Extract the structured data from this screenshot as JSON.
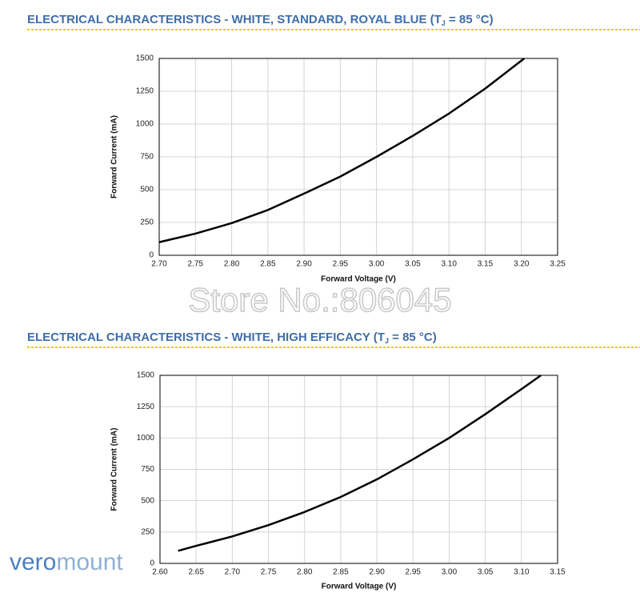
{
  "chart_data": [
    {
      "type": "line",
      "title": [
        "ELECTRICAL CHARACTERISTICS - WHITE, STANDARD, ROYAL BLUE (T",
        "J",
        " = 85 °C)"
      ],
      "x_label": "Forward Voltage (V)",
      "y_label": "Forward Current (mA)",
      "x": [
        2.7,
        2.75,
        2.8,
        2.85,
        2.9,
        2.95,
        3.0,
        3.05,
        3.1,
        3.15,
        3.204
      ],
      "series": [
        {
          "name": "Forward Current",
          "color": "#000000",
          "values": [
            100,
            165,
            245,
            345,
            470,
            600,
            750,
            910,
            1080,
            1270,
            1500
          ]
        }
      ],
      "xlim": [
        2.7,
        3.25
      ],
      "xticks": [
        {
          "value": 2.7,
          "label": "2.70"
        },
        {
          "value": 2.75,
          "label": "2.75"
        },
        {
          "value": 2.8,
          "label": "2.80"
        },
        {
          "value": 2.85,
          "label": "2.85"
        },
        {
          "value": 2.9,
          "label": "2.90"
        },
        {
          "value": 2.95,
          "label": "2.95"
        },
        {
          "value": 3.0,
          "label": "3.00"
        },
        {
          "value": 3.05,
          "label": "3.05"
        },
        {
          "value": 3.1,
          "label": "3.10"
        },
        {
          "value": 3.15,
          "label": "3.15"
        },
        {
          "value": 3.2,
          "label": "3.20"
        },
        {
          "value": 3.25,
          "label": "3.25"
        }
      ],
      "ylim": [
        0,
        1500
      ],
      "yticks": [
        0,
        250,
        500,
        750,
        1000,
        1250,
        1500
      ],
      "grid": true
    },
    {
      "type": "line",
      "title": [
        "ELECTRICAL CHARACTERISTICS - WHITE, HIGH EFFICACY (T",
        "J",
        " = 85 °C)"
      ],
      "x_label": "Forward Voltage (V)",
      "y_label": "Forward Current (mA)",
      "x": [
        2.625,
        2.65,
        2.7,
        2.75,
        2.8,
        2.85,
        2.9,
        2.95,
        3.0,
        3.05,
        3.1,
        3.127
      ],
      "series": [
        {
          "name": "Forward Current",
          "color": "#000000",
          "values": [
            100,
            140,
            215,
            305,
            410,
            530,
            670,
            830,
            1000,
            1190,
            1390,
            1500
          ]
        }
      ],
      "xlim": [
        2.6,
        3.15
      ],
      "xticks": [
        {
          "value": 2.6,
          "label": "2.60"
        },
        {
          "value": 2.65,
          "label": "2.65"
        },
        {
          "value": 2.7,
          "label": "2.70"
        },
        {
          "value": 2.75,
          "label": "2.75"
        },
        {
          "value": 2.8,
          "label": "2.80"
        },
        {
          "value": 2.85,
          "label": "2.85"
        },
        {
          "value": 2.9,
          "label": "2.90"
        },
        {
          "value": 2.95,
          "label": "2.95"
        },
        {
          "value": 3.0,
          "label": "3.00"
        },
        {
          "value": 3.05,
          "label": "3.05"
        },
        {
          "value": 3.1,
          "label": "3.10"
        },
        {
          "value": 3.15,
          "label": "3.15"
        }
      ],
      "ylim": [
        0,
        1500
      ],
      "yticks": [
        0,
        250,
        500,
        750,
        1000,
        1250,
        1500
      ],
      "grid": true
    }
  ],
  "watermark": "Store No.:806045",
  "logo": [
    "vero",
    "mount"
  ]
}
